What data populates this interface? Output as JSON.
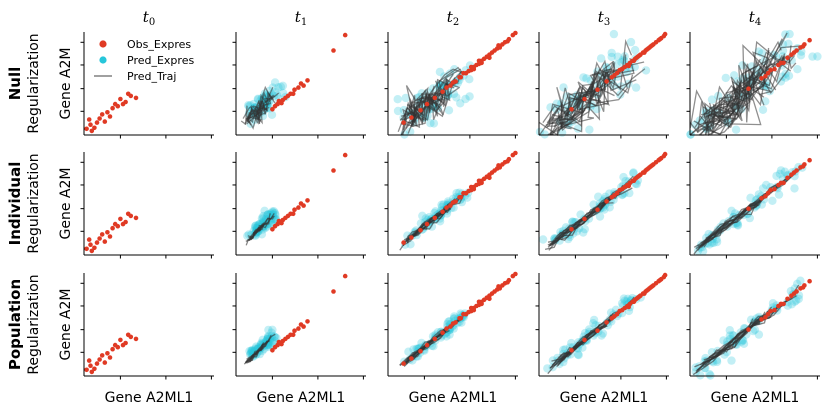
{
  "chart_data": {
    "type": "scatter",
    "title": "",
    "columns": [
      "t0",
      "t1",
      "t2",
      "t3",
      "t4"
    ],
    "column_titles": [
      {
        "base": "t",
        "sub": "0"
      },
      {
        "base": "t",
        "sub": "1"
      },
      {
        "base": "t",
        "sub": "2"
      },
      {
        "base": "t",
        "sub": "3"
      },
      {
        "base": "t",
        "sub": "4"
      }
    ],
    "rows": [
      {
        "bold": "Null",
        "normal": "Regularization"
      },
      {
        "bold": "Individual",
        "normal": "Regularization"
      },
      {
        "bold": "Population",
        "normal": "Regularization"
      }
    ],
    "xlabel": "Gene A2ML1",
    "ylabel": "Gene A2M",
    "grid": false,
    "legend": {
      "placement": "top-left of first panel",
      "entries": [
        {
          "label": "Obs_Expres",
          "marker": "dot",
          "color": "#e03a24"
        },
        {
          "label": "Pred_Expres",
          "marker": "dot",
          "color": "#26c6da"
        },
        {
          "label": "Pred_Traj",
          "marker": "line",
          "color": "#808080"
        }
      ]
    },
    "colors": {
      "observed": "#e03a24",
      "predicted": "#26c6da",
      "trajectory": "#333333"
    },
    "axes": {
      "xlim": [
        0,
        1
      ],
      "ylim": [
        0,
        1
      ]
    },
    "observed_by_time": [
      [
        [
          0.02,
          0.06
        ],
        [
          0.05,
          0.1
        ],
        [
          0.08,
          0.07
        ],
        [
          0.1,
          0.12
        ],
        [
          0.04,
          0.15
        ],
        [
          0.12,
          0.16
        ],
        [
          0.14,
          0.2
        ],
        [
          0.18,
          0.22
        ],
        [
          0.22,
          0.26
        ],
        [
          0.26,
          0.28
        ],
        [
          0.24,
          0.3
        ],
        [
          0.28,
          0.35
        ],
        [
          0.32,
          0.32
        ],
        [
          0.36,
          0.38
        ],
        [
          0.4,
          0.36
        ],
        [
          0.2,
          0.18
        ],
        [
          0.16,
          0.13
        ],
        [
          0.06,
          0.04
        ],
        [
          0.3,
          0.3
        ],
        [
          0.34,
          0.4
        ]
      ],
      [
        [
          0.28,
          0.25
        ],
        [
          0.32,
          0.3
        ],
        [
          0.36,
          0.34
        ],
        [
          0.4,
          0.38
        ],
        [
          0.45,
          0.44
        ],
        [
          0.5,
          0.5
        ],
        [
          0.55,
          0.53
        ],
        [
          0.44,
          0.4
        ],
        [
          0.38,
          0.36
        ],
        [
          0.33,
          0.33
        ],
        [
          0.42,
          0.4
        ],
        [
          0.48,
          0.46
        ],
        [
          0.3,
          0.28
        ],
        [
          0.35,
          0.31
        ],
        [
          0.52,
          0.48
        ],
        [
          0.75,
          0.82
        ],
        [
          0.84,
          0.97
        ]
      ],
      [
        [
          0.12,
          0.12
        ],
        [
          0.18,
          0.17
        ],
        [
          0.25,
          0.24
        ],
        [
          0.3,
          0.3
        ],
        [
          0.36,
          0.36
        ],
        [
          0.42,
          0.42
        ],
        [
          0.48,
          0.48
        ],
        [
          0.52,
          0.52
        ],
        [
          0.56,
          0.56
        ],
        [
          0.6,
          0.6
        ],
        [
          0.64,
          0.63
        ],
        [
          0.68,
          0.68
        ],
        [
          0.72,
          0.72
        ],
        [
          0.76,
          0.76
        ],
        [
          0.8,
          0.8
        ],
        [
          0.84,
          0.84
        ],
        [
          0.88,
          0.88
        ],
        [
          0.9,
          0.9
        ],
        [
          0.93,
          0.93
        ],
        [
          0.96,
          0.97
        ],
        [
          0.98,
          0.99
        ],
        [
          0.62,
          0.62
        ],
        [
          0.66,
          0.66
        ],
        [
          0.7,
          0.69
        ],
        [
          0.74,
          0.74
        ],
        [
          0.78,
          0.78
        ],
        [
          0.82,
          0.82
        ],
        [
          0.86,
          0.85
        ],
        [
          0.55,
          0.56
        ],
        [
          0.5,
          0.51
        ],
        [
          0.45,
          0.46
        ],
        [
          0.66,
          0.64
        ],
        [
          0.72,
          0.7
        ],
        [
          0.78,
          0.75
        ],
        [
          0.85,
          0.87
        ],
        [
          0.92,
          0.91
        ],
        [
          0.58,
          0.6
        ],
        [
          0.64,
          0.66
        ],
        [
          0.7,
          0.72
        ]
      ],
      [
        [
          0.25,
          0.25
        ],
        [
          0.35,
          0.35
        ],
        [
          0.45,
          0.44
        ],
        [
          0.52,
          0.52
        ],
        [
          0.56,
          0.56
        ],
        [
          0.6,
          0.6
        ],
        [
          0.64,
          0.64
        ],
        [
          0.68,
          0.68
        ],
        [
          0.72,
          0.72
        ],
        [
          0.74,
          0.74
        ],
        [
          0.76,
          0.76
        ],
        [
          0.78,
          0.78
        ],
        [
          0.8,
          0.8
        ],
        [
          0.82,
          0.82
        ],
        [
          0.84,
          0.84
        ],
        [
          0.86,
          0.86
        ],
        [
          0.88,
          0.88
        ],
        [
          0.9,
          0.9
        ],
        [
          0.92,
          0.92
        ],
        [
          0.94,
          0.94
        ],
        [
          0.96,
          0.96
        ],
        [
          0.66,
          0.66
        ],
        [
          0.7,
          0.7
        ],
        [
          0.73,
          0.72
        ],
        [
          0.77,
          0.77
        ],
        [
          0.81,
          0.8
        ],
        [
          0.85,
          0.85
        ],
        [
          0.62,
          0.63
        ],
        [
          0.58,
          0.58
        ],
        [
          0.69,
          0.67
        ],
        [
          0.75,
          0.75
        ],
        [
          0.83,
          0.83
        ],
        [
          0.87,
          0.87
        ],
        [
          0.93,
          0.93
        ],
        [
          0.97,
          0.98
        ]
      ],
      [
        [
          0.45,
          0.45
        ],
        [
          0.55,
          0.55
        ],
        [
          0.6,
          0.6
        ],
        [
          0.65,
          0.64
        ],
        [
          0.7,
          0.7
        ],
        [
          0.75,
          0.75
        ],
        [
          0.78,
          0.78
        ],
        [
          0.82,
          0.82
        ],
        [
          0.85,
          0.85
        ],
        [
          0.88,
          0.88
        ],
        [
          0.72,
          0.7
        ],
        [
          0.68,
          0.68
        ],
        [
          0.62,
          0.63
        ],
        [
          0.58,
          0.57
        ],
        [
          0.8,
          0.8
        ],
        [
          0.87,
          0.86
        ],
        [
          0.92,
          0.92
        ]
      ]
    ],
    "predicted_center_by_time": [
      [
        [
          0.0,
          0.0
        ]
      ],
      [
        [
          0.12,
          0.2
        ],
        [
          0.3,
          0.4
        ]
      ],
      [
        [
          0.15,
          0.15
        ],
        [
          0.6,
          0.6
        ]
      ],
      [
        [
          0.1,
          0.1
        ],
        [
          0.75,
          0.75
        ]
      ],
      [
        [
          0.05,
          0.05
        ],
        [
          0.85,
          0.85
        ]
      ]
    ],
    "predicted_spread": [
      [
        0.0,
        0.0,
        0.0
      ],
      [
        0.06,
        0.03,
        0.03
      ],
      [
        0.1,
        0.04,
        0.03
      ],
      [
        0.12,
        0.05,
        0.04
      ],
      [
        0.14,
        0.05,
        0.05
      ]
    ],
    "trajectory_count": [
      [
        0,
        0,
        0
      ],
      [
        14,
        10,
        10
      ],
      [
        22,
        14,
        14
      ],
      [
        24,
        14,
        14
      ],
      [
        28,
        14,
        14
      ]
    ]
  }
}
